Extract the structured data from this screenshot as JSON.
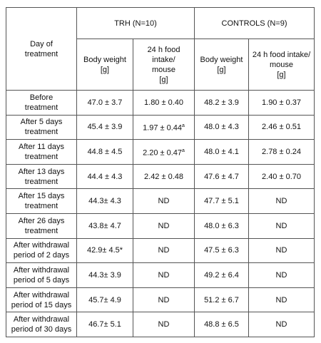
{
  "table": {
    "header": {
      "row_label": [
        "Day of",
        "treatment"
      ],
      "groups": [
        "TRH (N=10)",
        "CONTROLS (N=9)"
      ],
      "columns": [
        [
          "Body weight",
          "[g]"
        ],
        [
          "24 h food intake/",
          "mouse",
          "[g]"
        ],
        [
          "Body weight",
          "[g]"
        ],
        [
          "24 h food intake/",
          "mouse",
          "[g]"
        ]
      ]
    },
    "rows": [
      {
        "label": [
          "Before",
          "treatment"
        ],
        "cells": [
          "47.0 ± 3.7",
          "1.80 ± 0.40",
          "48.2 ± 3.9",
          "1.90 ± 0.37"
        ]
      },
      {
        "label": [
          "After 5 days",
          "treatment"
        ],
        "cells": [
          "45.4 ± 3.9",
          {
            "text": "1.97 ± 0.44",
            "sup": "a"
          },
          "48.0 ± 4.3",
          "2.46 ± 0.51"
        ]
      },
      {
        "label": [
          "After 11 days",
          "treatment"
        ],
        "cells": [
          "44.8 ± 4.5",
          {
            "text": "2.20 ± 0.47",
            "sup": "a"
          },
          "48.0 ± 4.1",
          "2.78 ± 0.24"
        ]
      },
      {
        "label": [
          "After 13 days",
          "treatment"
        ],
        "cells": [
          "44.4 ± 4.3",
          "2.42 ± 0.48",
          "47.6 ± 4.7",
          "2.40 ± 0.70"
        ]
      },
      {
        "label": [
          "After 15 days",
          "treatment"
        ],
        "cells": [
          "44.3± 4.3",
          "ND",
          "47.7 ± 5.1",
          "ND"
        ]
      },
      {
        "label": [
          "After 26 days",
          "treatment"
        ],
        "cells": [
          "43.8± 4.7",
          "ND",
          "48.0 ± 6.3",
          "ND"
        ]
      },
      {
        "label": [
          "After withdrawal",
          "period of 2 days"
        ],
        "cells": [
          "42.9± 4.5*",
          "ND",
          "47.5 ± 6.3",
          "ND"
        ]
      },
      {
        "label": [
          "After withdrawal",
          "period of 5 days"
        ],
        "cells": [
          "44.3± 3.9",
          "ND",
          "49.2 ± 6.4",
          "ND"
        ]
      },
      {
        "label": [
          "After withdrawal",
          "period of 15 days"
        ],
        "cells": [
          "45.7± 4.9",
          "ND",
          "51.2 ± 6.7",
          "ND"
        ]
      },
      {
        "label": [
          "After withdrawal",
          "period of 30 days"
        ],
        "cells": [
          "46.7± 5.1",
          "ND",
          "48.8 ± 6.5",
          "ND"
        ]
      }
    ]
  }
}
